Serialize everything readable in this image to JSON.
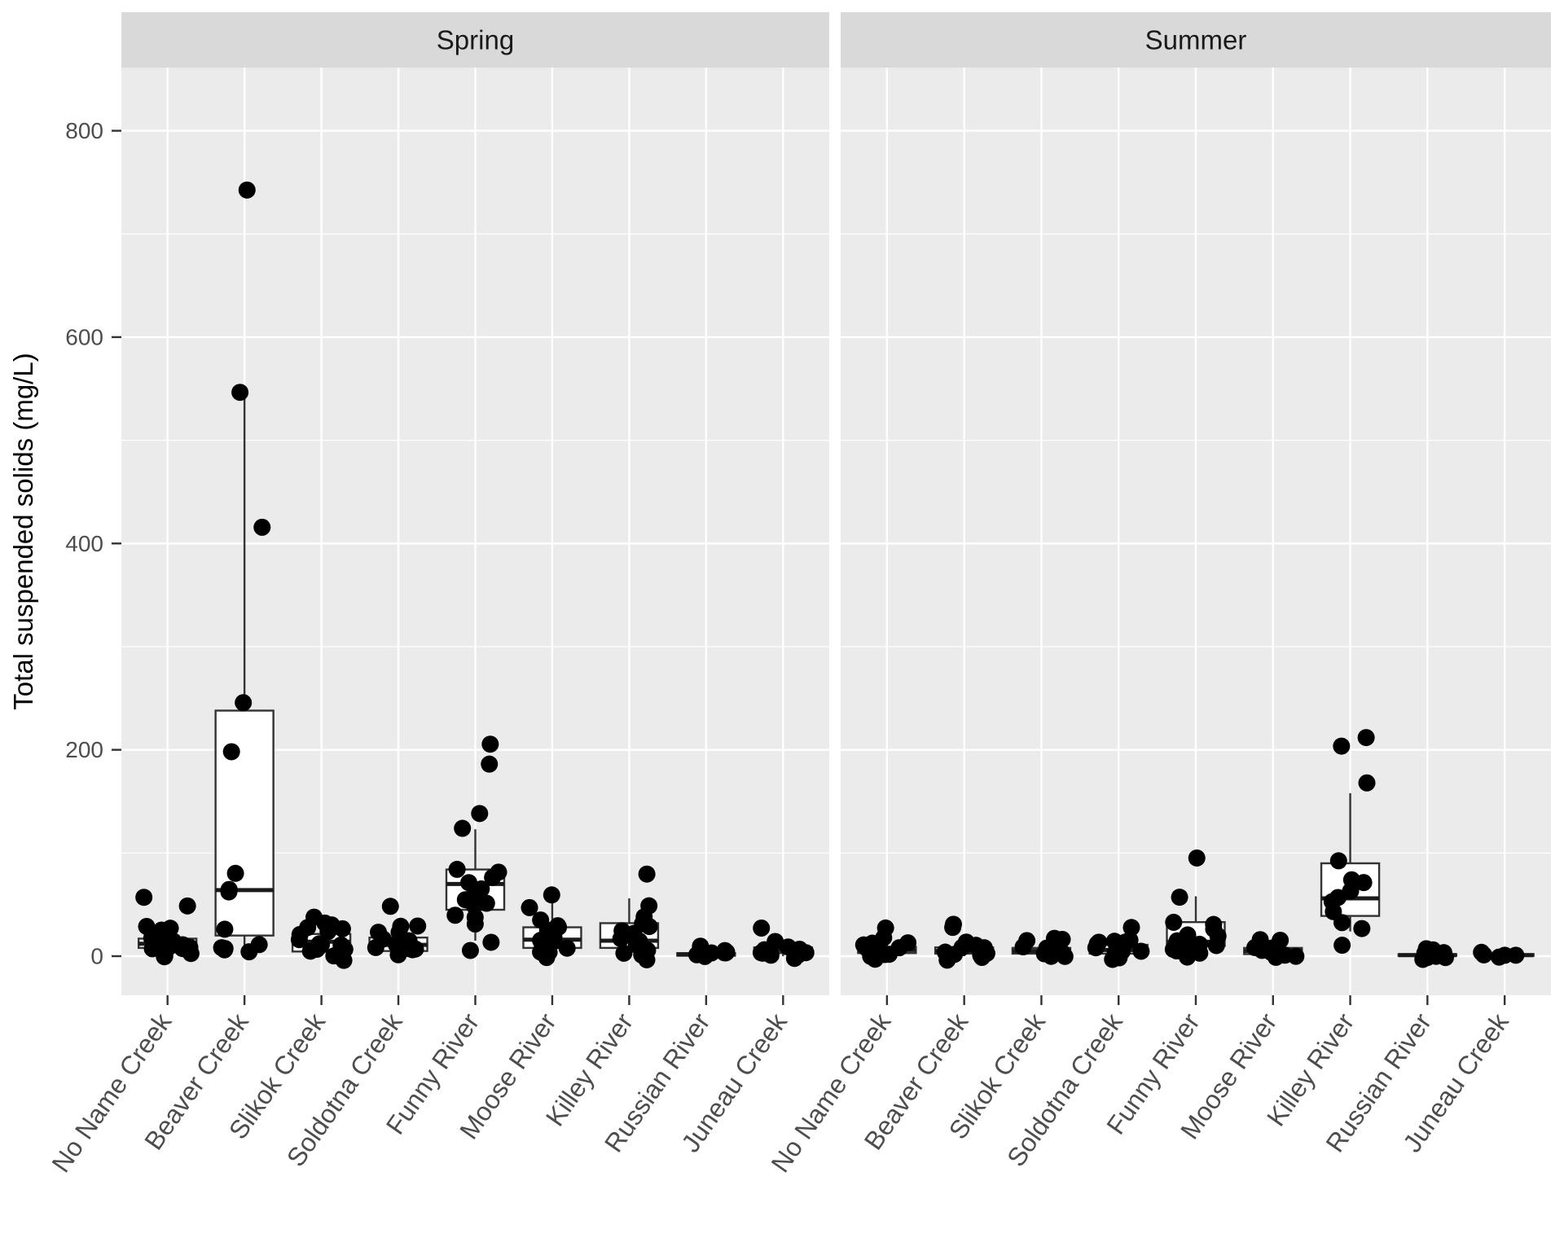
{
  "chart_data": {
    "type": "boxplot",
    "subtype": "faceted boxplot with jittered points (ggplot2 style)",
    "title": "",
    "ylabel": "Total suspended solids (mg/L)",
    "xlabel": "",
    "yticks": [
      0,
      200,
      400,
      600,
      800
    ],
    "yminor": [
      100,
      300,
      500,
      700
    ],
    "ylim": [
      -38,
      861
    ],
    "grid": "white major+minor horizontal, white major vertical on gray panel",
    "legend": "none",
    "categories": [
      "No Name Creek",
      "Beaver Creek",
      "Slikok Creek",
      "Soldotna Creek",
      "Funny River",
      "Moose River",
      "Killey River",
      "Russian River",
      "Juneau Creek"
    ],
    "facets": [
      {
        "label": "Spring",
        "groups": [
          {
            "name": "No Name Creek",
            "box": {
              "q1": 8,
              "median": 12,
              "q3": 17,
              "lo": 1,
              "hi": 30
            },
            "points": [
              60,
              52,
              31,
              27,
              23,
              20,
              18,
              16,
              14,
              12,
              11,
              9,
              8,
              6,
              5,
              3,
              2,
              0
            ]
          },
          {
            "name": "Beaver Creek",
            "box": {
              "q1": 20,
              "median": 64,
              "q3": 238,
              "lo": 1,
              "hi": 551
            },
            "points": [
              747,
              551,
              411,
              250,
              196,
              81,
              65,
              63,
              28,
              11,
              8,
              5,
              2,
              0
            ]
          },
          {
            "name": "Slikok Creek",
            "box": {
              "q1": 4.5,
              "median": 14,
              "q3": 21.5,
              "lo": 0,
              "hi": 30
            },
            "points": [
              41,
              34,
              30,
              28,
              25,
              22,
              20,
              17,
              15,
              13,
              11,
              9,
              7,
              5,
              3,
              1,
              0
            ]
          },
          {
            "name": "Soldotna Creek",
            "box": {
              "q1": 5,
              "median": 11,
              "q3": 18,
              "lo": 0,
              "hi": 28
            },
            "points": [
              52,
              30,
              26,
              22,
              19,
              17,
              15,
              13,
              11,
              9,
              8,
              6,
              5,
              3,
              2,
              0
            ]
          },
          {
            "name": "Funny River",
            "box": {
              "q1": 45,
              "median": 70,
              "q3": 84,
              "lo": 15,
              "hi": 123
            },
            "points": [
              206,
              188,
              137,
              126,
              85,
              81,
              77,
              73,
              68,
              64,
              58,
              52,
              47,
              42,
              35,
              28,
              10,
              4
            ]
          },
          {
            "name": "Moose River",
            "box": {
              "q1": 8,
              "median": 16,
              "q3": 28,
              "lo": 0,
              "hi": 56
            },
            "points": [
              59,
              44,
              38,
              30,
              26,
              23,
              20,
              17,
              14,
              12,
              10,
              8,
              6,
              4,
              2,
              0
            ]
          },
          {
            "name": "Killey River",
            "box": {
              "q1": 8,
              "median": 15,
              "q3": 32,
              "lo": 0,
              "hi": 56
            },
            "points": [
              75,
              47,
              37,
              32,
              28,
              25,
              22,
              19,
              16,
              13,
              11,
              9,
              7,
              5,
              3,
              1
            ]
          },
          {
            "name": "Russian River",
            "box": {
              "q1": 0.5,
              "median": 1.5,
              "q3": 3,
              "lo": 0,
              "hi": 5
            },
            "points": [
              5,
              4,
              3,
              3,
              2,
              2,
              1,
              1,
              0,
              0
            ]
          },
          {
            "name": "Juneau Creek",
            "box": {
              "q1": 3,
              "median": 6,
              "q3": 8.5,
              "lo": 0,
              "hi": 11
            },
            "points": [
              24,
              11,
              9,
              8,
              7,
              6,
              5,
              4,
              3,
              2,
              1,
              0
            ]
          }
        ]
      },
      {
        "label": "Summer",
        "groups": [
          {
            "name": "No Name Creek",
            "box": {
              "q1": 3,
              "median": 6,
              "q3": 9,
              "lo": 0,
              "hi": 13
            },
            "points": [
              24,
              15,
              12,
              10,
              8,
              7,
              6,
              5,
              4,
              3,
              2,
              1,
              0,
              0
            ]
          },
          {
            "name": "Beaver Creek",
            "box": {
              "q1": 2.5,
              "median": 5,
              "q3": 8.5,
              "lo": 0,
              "hi": 12
            },
            "points": [
              31,
              25,
              12,
              10,
              8,
              7,
              6,
              5,
              4,
              3,
              2,
              1,
              0
            ]
          },
          {
            "name": "Slikok Creek",
            "box": {
              "q1": 2.5,
              "median": 5,
              "q3": 8,
              "lo": 0,
              "hi": 12
            },
            "points": [
              20,
              19,
              13,
              11,
              9,
              8,
              7,
              6,
              5,
              4,
              3,
              2,
              1,
              0
            ]
          },
          {
            "name": "Soldotna Creek",
            "box": {
              "q1": 2.5,
              "median": 6,
              "q3": 11,
              "lo": 0,
              "hi": 16
            },
            "points": [
              32,
              20,
              16,
              13,
              11,
              9,
              8,
              6,
              5,
              4,
              3,
              2,
              1,
              0
            ]
          },
          {
            "name": "Funny River",
            "box": {
              "q1": 10,
              "median": 14,
              "q3": 33,
              "lo": 0,
              "hi": 58
            },
            "points": [
              91,
              60,
              34,
              30,
              28,
              24,
              20,
              17,
              14,
              12,
              10,
              8,
              6,
              4,
              2,
              0
            ]
          },
          {
            "name": "Moose River",
            "box": {
              "q1": 2,
              "median": 5,
              "q3": 8,
              "lo": 0,
              "hi": 12
            },
            "points": [
              20,
              12,
              10,
              8,
              7,
              6,
              5,
              4,
              3,
              2,
              1,
              0
            ]
          },
          {
            "name": "Killey River",
            "box": {
              "q1": 39,
              "median": 56,
              "q3": 90,
              "lo": 24,
              "hi": 158
            },
            "points": [
              214,
              203,
              165,
              90,
              70,
              69,
              62,
              56,
              50,
              40,
              35,
              24,
              8
            ]
          },
          {
            "name": "Russian River",
            "box": {
              "q1": 0.3,
              "median": 1,
              "q3": 2,
              "lo": 0,
              "hi": 3
            },
            "points": [
              3,
              2.5,
              2,
              1.5,
              1,
              1,
              0.5,
              0,
              0
            ]
          },
          {
            "name": "Juneau Creek",
            "box": {
              "q1": 0.3,
              "median": 1,
              "q3": 2,
              "lo": 0,
              "hi": 3
            },
            "points": [
              3,
              2,
              1,
              0.5,
              0
            ]
          }
        ]
      }
    ],
    "colors": {
      "panel_bg": "#EBEBEB",
      "strip_bg": "#D9D9D9",
      "grid": "#FFFFFF",
      "box_stroke": "#333333",
      "box_fill": "#FFFFFF",
      "median": "#1A1A1A",
      "point": "#000000",
      "axis_text": "#4D4D4D",
      "strip_text": "#1A1A1A",
      "title_text": "#000000",
      "tick": "#333333",
      "page_bg": "#FFFFFF"
    }
  }
}
